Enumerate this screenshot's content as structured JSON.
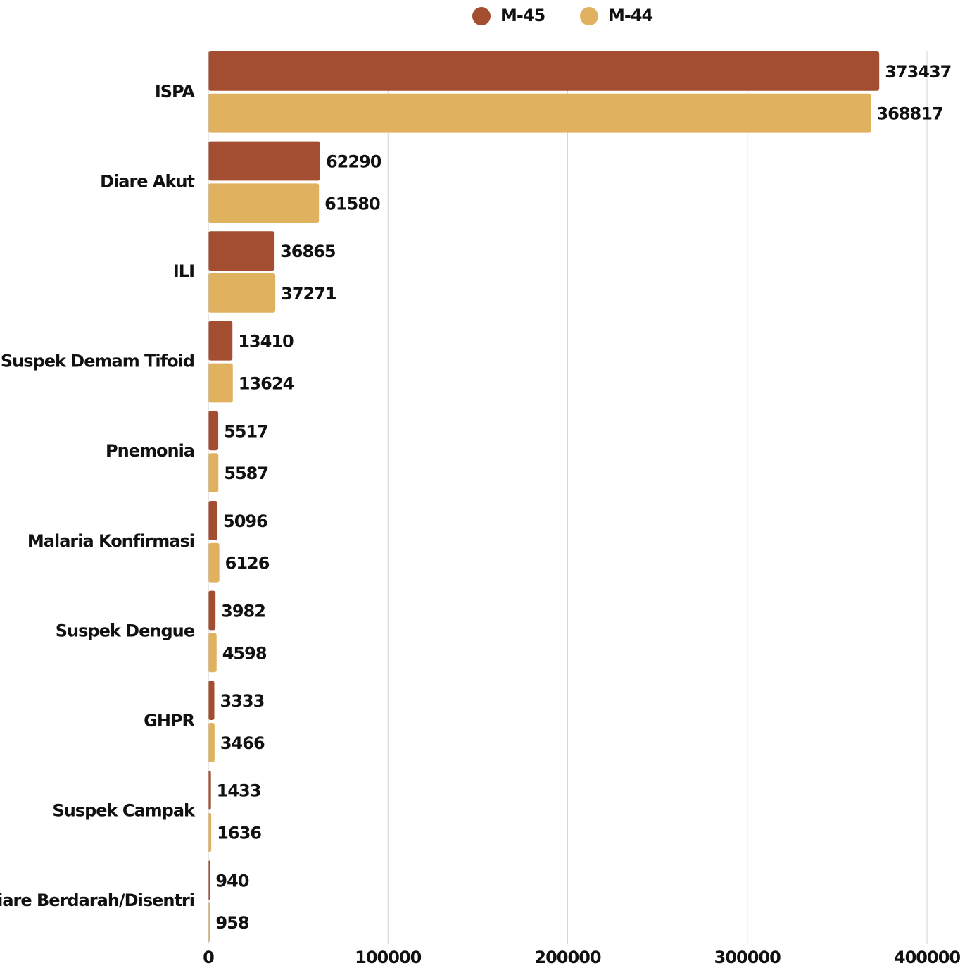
{
  "chart_data": {
    "type": "bar",
    "orientation": "horizontal",
    "categories": [
      "ISPA",
      "Diare Akut",
      "ILI",
      "Suspek Demam Tifoid",
      "Pnemonia",
      "Malaria Konfirmasi",
      "Suspek Dengue",
      "GHPR",
      "Suspek Campak",
      "Diare Berdarah/Disentri"
    ],
    "series": [
      {
        "name": "M-45",
        "color": "#a34e30",
        "values": [
          373437,
          62290,
          36865,
          13410,
          5517,
          5096,
          3982,
          3333,
          1433,
          940
        ]
      },
      {
        "name": "M-44",
        "color": "#e0b260",
        "values": [
          368817,
          61580,
          37271,
          13624,
          5587,
          6126,
          4598,
          3466,
          1636,
          958
        ]
      }
    ],
    "xlim": [
      0,
      400000
    ],
    "xticks": [
      0,
      100000,
      200000,
      300000,
      400000
    ],
    "grid": true,
    "legend": "top"
  }
}
